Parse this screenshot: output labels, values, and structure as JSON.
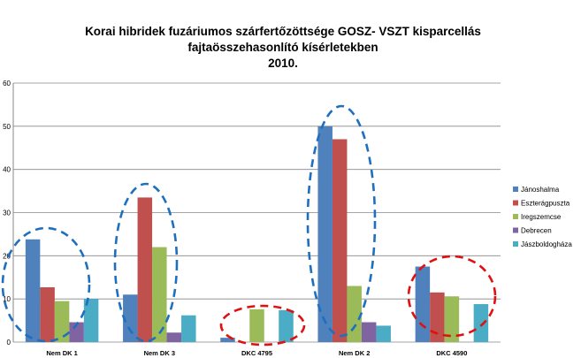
{
  "chart_data": {
    "type": "bar",
    "title": [
      "Korai hibridek fuzáriumos szárfertőzöttsége  GOSZ- VSZT kisparcellás",
      "fajtaösszehasonlító kísérletekben",
      "2010."
    ],
    "categories": [
      "Nem DK 1",
      "Nem DK 3",
      "DKC 4795",
      "Nem DK 2",
      "DKC 4590"
    ],
    "ylim": [
      0,
      60
    ],
    "yticks": [
      0,
      10,
      20,
      30,
      40,
      50,
      60
    ],
    "grid": true,
    "legend_position": "right",
    "series": [
      {
        "name": "Jánoshalma",
        "color": "#4f81bd",
        "values": [
          23.8,
          11,
          1,
          50,
          17.5
        ]
      },
      {
        "name": "Eszterágpuszta",
        "color": "#c0504d",
        "values": [
          12.7,
          33.5,
          0,
          47,
          11.5
        ]
      },
      {
        "name": "Iregszemcse",
        "color": "#9bbb59",
        "values": [
          9.5,
          22,
          7.6,
          13,
          10.6
        ]
      },
      {
        "name": "Debrecen",
        "color": "#8064a2",
        "values": [
          4.6,
          2.2,
          0,
          4.6,
          0
        ]
      },
      {
        "name": "Jászboldogháza",
        "color": "#4bacc6",
        "values": [
          10,
          6.2,
          7.4,
          3.8,
          8.8
        ]
      }
    ],
    "annotations": [
      {
        "shape": "dashed-ellipse",
        "color": "#1f6fbf",
        "category": "Nem DK 1"
      },
      {
        "shape": "dashed-ellipse",
        "color": "#1f6fbf",
        "category": "Nem DK 3"
      },
      {
        "shape": "dashed-ellipse",
        "color": "#e01010",
        "category": "DKC 4795"
      },
      {
        "shape": "dashed-ellipse",
        "color": "#1f6fbf",
        "category": "Nem DK 2"
      },
      {
        "shape": "dashed-ellipse",
        "color": "#e01010",
        "category": "DKC 4590"
      }
    ]
  }
}
